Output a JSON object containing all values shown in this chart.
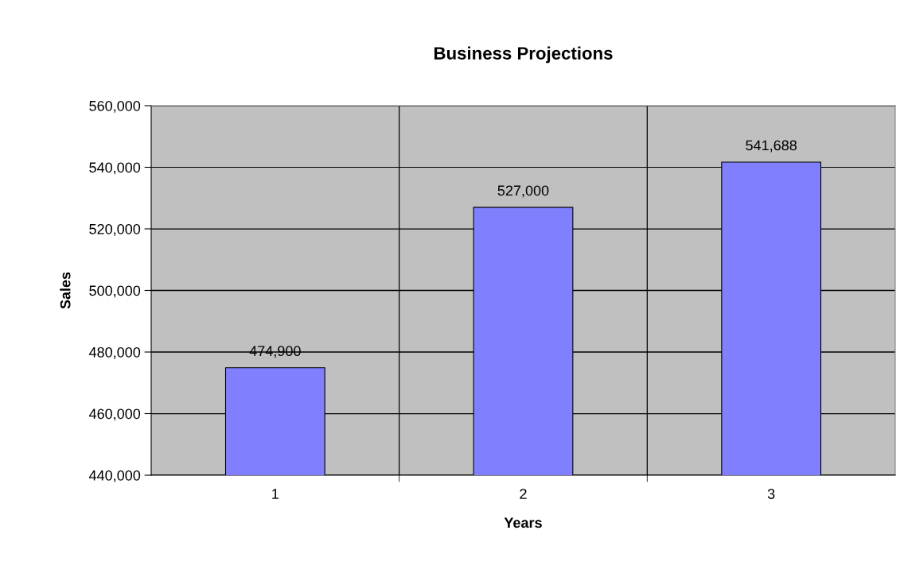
{
  "chart_data": {
    "type": "bar",
    "title": "Business Projections",
    "xlabel": "Years",
    "ylabel": "Sales",
    "categories": [
      "1",
      "2",
      "3"
    ],
    "values": [
      474900,
      527000,
      541688
    ],
    "color": "#8080ff",
    "ylim": [
      440000,
      560000
    ],
    "yticks": [
      {
        "value": 440000,
        "label": "440,000"
      },
      {
        "value": 460000,
        "label": "460,000"
      },
      {
        "value": 480000,
        "label": "480,000"
      },
      {
        "value": 500000,
        "label": "500,000"
      },
      {
        "value": 520000,
        "label": "520,000"
      },
      {
        "value": 540000,
        "label": "540,000"
      },
      {
        "value": 560000,
        "label": "560,000"
      }
    ],
    "value_labels": [
      "474,900",
      "527,000",
      "541,688"
    ],
    "grid": true
  }
}
